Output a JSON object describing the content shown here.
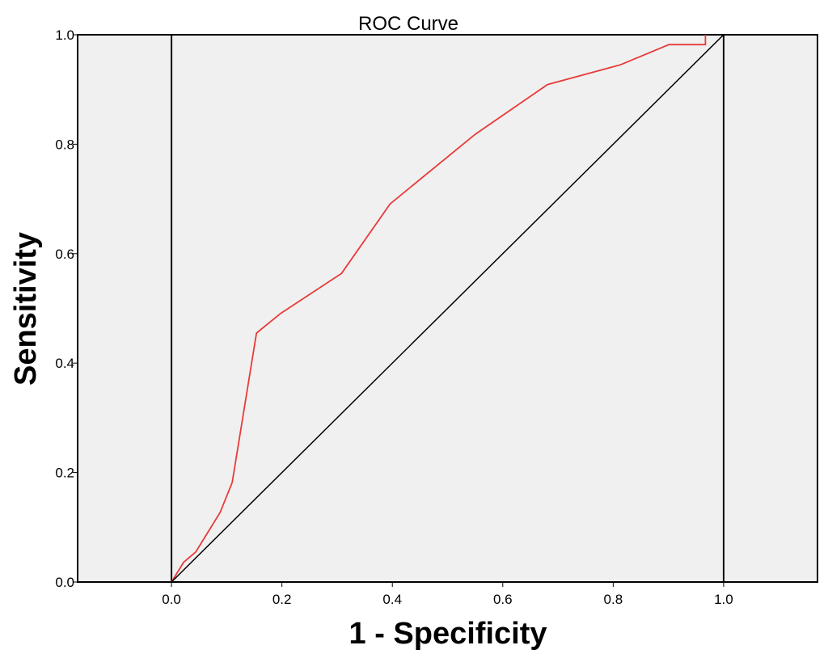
{
  "colors": {
    "background": "#f0f0f0",
    "frame": "#000000",
    "roc_curve": "#e83a3a",
    "reference_line": "#000000"
  },
  "chart_data": {
    "type": "line",
    "title": "ROC Curve",
    "xlabel": "1 - Specificity",
    "ylabel": "Sensitivity",
    "xlim": [
      -0.17,
      1.17
    ],
    "ylim": [
      0.0,
      1.0
    ],
    "x_ticks": [
      "0.0",
      "0.2",
      "0.4",
      "0.6",
      "0.8",
      "1.0"
    ],
    "y_ticks": [
      "0.0",
      "0.2",
      "0.4",
      "0.6",
      "0.8",
      "1.0"
    ],
    "x_tick_values": [
      0.0,
      0.2,
      0.4,
      0.6,
      0.8,
      1.0
    ],
    "y_tick_values": [
      0.0,
      0.2,
      0.4,
      0.6,
      0.8,
      1.0
    ],
    "grid": false,
    "series": [
      {
        "role": "roc",
        "x": [
          0.0,
          0.022,
          0.044,
          0.088,
          0.11,
          0.154,
          0.198,
          0.308,
          0.396,
          0.55,
          0.681,
          0.813,
          0.901,
          0.967,
          0.967
        ],
        "y": [
          0.0,
          0.036,
          0.055,
          0.127,
          0.182,
          0.455,
          0.491,
          0.564,
          0.691,
          0.818,
          0.909,
          0.945,
          0.982,
          0.982,
          1.0
        ]
      },
      {
        "role": "reference",
        "x": [
          0.0,
          1.0
        ],
        "y": [
          0.0,
          1.0
        ]
      }
    ],
    "vertical_lines": [
      0.0,
      1.0
    ]
  }
}
